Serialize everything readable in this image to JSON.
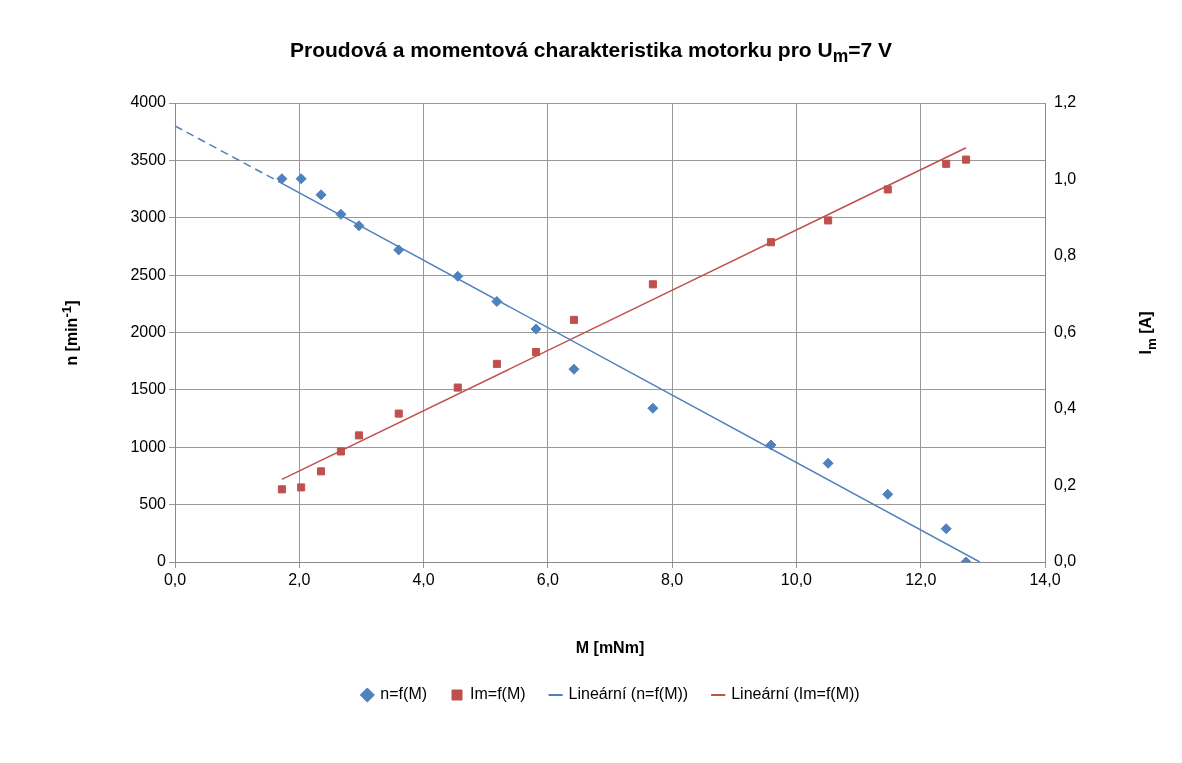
{
  "chart_data": {
    "type": "scatter",
    "title": "Proudová a momentová charakteristika motorku pro U$_{m}$=7 V",
    "xlabel": "M [mNm]",
    "ylabel": "n [min$^{-1}$]",
    "y2label": "I$_{m}$ [A]",
    "xlim": [
      0,
      14
    ],
    "xticks": [
      {
        "value": 0,
        "label": "0,0"
      },
      {
        "value": 2,
        "label": "2,0"
      },
      {
        "value": 4,
        "label": "4,0"
      },
      {
        "value": 6,
        "label": "6,0"
      },
      {
        "value": 8,
        "label": "8,0"
      },
      {
        "value": 10,
        "label": "10,0"
      },
      {
        "value": 12,
        "label": "12,0"
      },
      {
        "value": 14,
        "label": "14,0"
      }
    ],
    "ylim": [
      0,
      4000
    ],
    "yticks": [
      0,
      500,
      1000,
      1500,
      2000,
      2500,
      3000,
      3500,
      4000
    ],
    "y2lim": [
      0,
      1.2
    ],
    "y2ticks": [
      {
        "value": 0,
        "label": "0,0"
      },
      {
        "value": 0.2,
        "label": "0,2"
      },
      {
        "value": 0.4,
        "label": "0,4"
      },
      {
        "value": 0.6,
        "label": "0,6"
      },
      {
        "value": 0.8,
        "label": "0,8"
      },
      {
        "value": 1.0,
        "label": "1,0"
      },
      {
        "value": 1.2,
        "label": "1,2"
      }
    ],
    "grid": true,
    "legend": "bottom",
    "series": [
      {
        "name": "n=f(M)",
        "marker": "diamond",
        "color": "#4f81bd",
        "x": [
          1.72,
          2.03,
          2.35,
          2.67,
          2.96,
          3.6,
          4.55,
          5.18,
          5.81,
          6.42,
          7.69,
          9.59,
          10.51,
          11.47,
          12.41,
          12.73
        ],
        "values": [
          3340,
          3340,
          3200,
          3030,
          2930,
          2720,
          2490,
          2270,
          2030,
          1680,
          1340,
          1020,
          860,
          590,
          290,
          0
        ]
      },
      {
        "name": "Im=f(M)",
        "marker": "square",
        "axis": "y2",
        "color": "#c0504d",
        "x": [
          1.72,
          2.03,
          2.35,
          2.67,
          2.96,
          3.6,
          4.55,
          5.18,
          5.81,
          6.42,
          7.69,
          9.59,
          10.51,
          11.47,
          12.41,
          12.73
        ],
        "values": [
          0.19,
          0.195,
          0.237,
          0.289,
          0.331,
          0.388,
          0.456,
          0.518,
          0.549,
          0.633,
          0.726,
          0.836,
          0.893,
          0.974,
          1.041,
          1.052
        ]
      },
      {
        "name": "Lineární (n=f(M))",
        "type": "line",
        "marker": "none",
        "line_style": "solid",
        "color": "#4f81bd",
        "x": [
          1.72,
          12.95
        ],
        "values": [
          3300,
          0
        ]
      },
      {
        "name": "Lineární (Im=f(M))",
        "type": "line",
        "marker": "none",
        "line_style": "solid",
        "axis": "y2",
        "color": "#c0504d",
        "x": [
          1.72,
          12.73
        ],
        "values": [
          0.216,
          1.083
        ]
      },
      {
        "type": "line",
        "marker": "none",
        "line_style": "dashed",
        "color": "#4f81bd",
        "x": [
          0,
          1.72
        ],
        "values": [
          3800,
          3300
        ]
      }
    ]
  }
}
